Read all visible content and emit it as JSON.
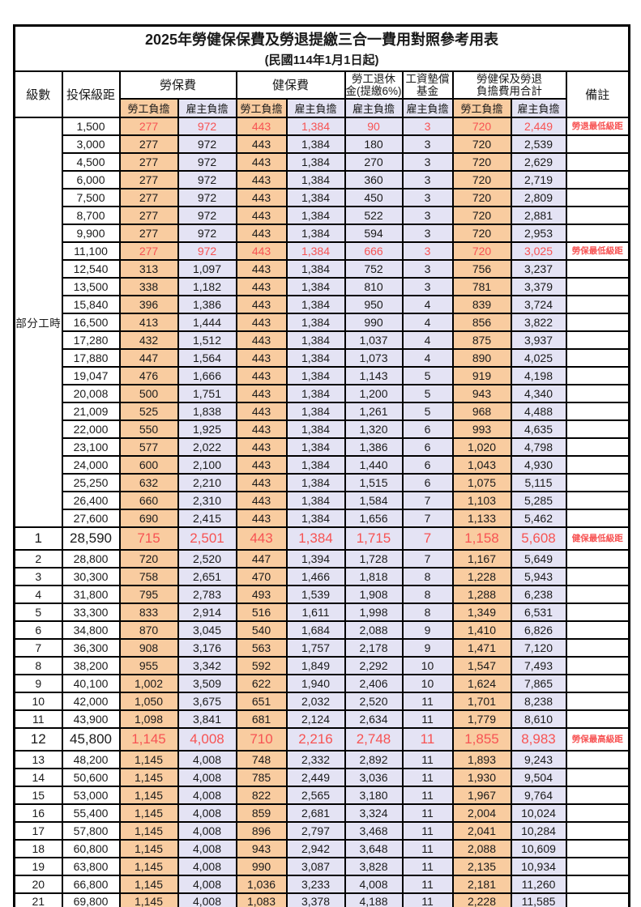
{
  "title": "2025年勞健保保費及勞退提繳三合一費用對照參考用表",
  "subtitle": "(民國114年1月1日起)",
  "colors": {
    "employee_col_bg": "#F9CCA0",
    "employer_col_bg": "#E4E3F4",
    "highlight_text": "#F75353",
    "border": "#000000"
  },
  "header": {
    "level": "級數",
    "bracket": "投保級距",
    "labor_ins": "勞保費",
    "health_ins": "健保費",
    "pension_line1": "勞工退休",
    "pension_line2": "金(提繳6%)",
    "wage_fund_line1": "工資墊償",
    "wage_fund_line2": "基金",
    "total_line1": "勞健保及勞退",
    "total_line2": "負擔費用合計",
    "remark": "備註",
    "employee": "勞工負擔",
    "employer": "雇主負擔"
  },
  "part_time_label": "部分工時",
  "rows": [
    {
      "level": "",
      "bracket": "1,500",
      "values": [
        "277",
        "972",
        "443",
        "1,384",
        "90",
        "3",
        "720",
        "2,449"
      ],
      "remark": "勞退最低級距",
      "red": true,
      "big": false
    },
    {
      "level": "",
      "bracket": "3,000",
      "values": [
        "277",
        "972",
        "443",
        "1,384",
        "180",
        "3",
        "720",
        "2,539"
      ],
      "remark": "",
      "red": false,
      "big": false
    },
    {
      "level": "",
      "bracket": "4,500",
      "values": [
        "277",
        "972",
        "443",
        "1,384",
        "270",
        "3",
        "720",
        "2,629"
      ],
      "remark": "",
      "red": false,
      "big": false
    },
    {
      "level": "",
      "bracket": "6,000",
      "values": [
        "277",
        "972",
        "443",
        "1,384",
        "360",
        "3",
        "720",
        "2,719"
      ],
      "remark": "",
      "red": false,
      "big": false
    },
    {
      "level": "",
      "bracket": "7,500",
      "values": [
        "277",
        "972",
        "443",
        "1,384",
        "450",
        "3",
        "720",
        "2,809"
      ],
      "remark": "",
      "red": false,
      "big": false
    },
    {
      "level": "",
      "bracket": "8,700",
      "values": [
        "277",
        "972",
        "443",
        "1,384",
        "522",
        "3",
        "720",
        "2,881"
      ],
      "remark": "",
      "red": false,
      "big": false
    },
    {
      "level": "",
      "bracket": "9,900",
      "values": [
        "277",
        "972",
        "443",
        "1,384",
        "594",
        "3",
        "720",
        "2,953"
      ],
      "remark": "",
      "red": false,
      "big": false
    },
    {
      "level": "",
      "bracket": "11,100",
      "values": [
        "277",
        "972",
        "443",
        "1,384",
        "666",
        "3",
        "720",
        "3,025"
      ],
      "remark": "勞保最低級距",
      "red": true,
      "big": false
    },
    {
      "level": "",
      "bracket": "12,540",
      "values": [
        "313",
        "1,097",
        "443",
        "1,384",
        "752",
        "3",
        "756",
        "3,237"
      ],
      "remark": "",
      "red": false,
      "big": false
    },
    {
      "level": "",
      "bracket": "13,500",
      "values": [
        "338",
        "1,182",
        "443",
        "1,384",
        "810",
        "3",
        "781",
        "3,379"
      ],
      "remark": "",
      "red": false,
      "big": false
    },
    {
      "level": "",
      "bracket": "15,840",
      "values": [
        "396",
        "1,386",
        "443",
        "1,384",
        "950",
        "4",
        "839",
        "3,724"
      ],
      "remark": "",
      "red": false,
      "big": false
    },
    {
      "level": "",
      "bracket": "16,500",
      "values": [
        "413",
        "1,444",
        "443",
        "1,384",
        "990",
        "4",
        "856",
        "3,822"
      ],
      "remark": "",
      "red": false,
      "big": false
    },
    {
      "level": "",
      "bracket": "17,280",
      "values": [
        "432",
        "1,512",
        "443",
        "1,384",
        "1,037",
        "4",
        "875",
        "3,937"
      ],
      "remark": "",
      "red": false,
      "big": false
    },
    {
      "level": "",
      "bracket": "17,880",
      "values": [
        "447",
        "1,564",
        "443",
        "1,384",
        "1,073",
        "4",
        "890",
        "4,025"
      ],
      "remark": "",
      "red": false,
      "big": false
    },
    {
      "level": "",
      "bracket": "19,047",
      "values": [
        "476",
        "1,666",
        "443",
        "1,384",
        "1,143",
        "5",
        "919",
        "4,198"
      ],
      "remark": "",
      "red": false,
      "big": false
    },
    {
      "level": "",
      "bracket": "20,008",
      "values": [
        "500",
        "1,751",
        "443",
        "1,384",
        "1,200",
        "5",
        "943",
        "4,340"
      ],
      "remark": "",
      "red": false,
      "big": false
    },
    {
      "level": "",
      "bracket": "21,009",
      "values": [
        "525",
        "1,838",
        "443",
        "1,384",
        "1,261",
        "5",
        "968",
        "4,488"
      ],
      "remark": "",
      "red": false,
      "big": false
    },
    {
      "level": "",
      "bracket": "22,000",
      "values": [
        "550",
        "1,925",
        "443",
        "1,384",
        "1,320",
        "6",
        "993",
        "4,635"
      ],
      "remark": "",
      "red": false,
      "big": false
    },
    {
      "level": "",
      "bracket": "23,100",
      "values": [
        "577",
        "2,022",
        "443",
        "1,384",
        "1,386",
        "6",
        "1,020",
        "4,798"
      ],
      "remark": "",
      "red": false,
      "big": false
    },
    {
      "level": "",
      "bracket": "24,000",
      "values": [
        "600",
        "2,100",
        "443",
        "1,384",
        "1,440",
        "6",
        "1,043",
        "4,930"
      ],
      "remark": "",
      "red": false,
      "big": false
    },
    {
      "level": "",
      "bracket": "25,250",
      "values": [
        "632",
        "2,210",
        "443",
        "1,384",
        "1,515",
        "6",
        "1,075",
        "5,115"
      ],
      "remark": "",
      "red": false,
      "big": false
    },
    {
      "level": "",
      "bracket": "26,400",
      "values": [
        "660",
        "2,310",
        "443",
        "1,384",
        "1,584",
        "7",
        "1,103",
        "5,285"
      ],
      "remark": "",
      "red": false,
      "big": false
    },
    {
      "level": "",
      "bracket": "27,600",
      "values": [
        "690",
        "2,415",
        "443",
        "1,384",
        "1,656",
        "7",
        "1,133",
        "5,462"
      ],
      "remark": "",
      "red": false,
      "big": false
    },
    {
      "level": "1",
      "bracket": "28,590",
      "values": [
        "715",
        "2,501",
        "443",
        "1,384",
        "1,715",
        "7",
        "1,158",
        "5,608"
      ],
      "remark": "健保最低級距",
      "red": true,
      "big": true
    },
    {
      "level": "2",
      "bracket": "28,800",
      "values": [
        "720",
        "2,520",
        "447",
        "1,394",
        "1,728",
        "7",
        "1,167",
        "5,649"
      ],
      "remark": "",
      "red": false,
      "big": false
    },
    {
      "level": "3",
      "bracket": "30,300",
      "values": [
        "758",
        "2,651",
        "470",
        "1,466",
        "1,818",
        "8",
        "1,228",
        "5,943"
      ],
      "remark": "",
      "red": false,
      "big": false
    },
    {
      "level": "4",
      "bracket": "31,800",
      "values": [
        "795",
        "2,783",
        "493",
        "1,539",
        "1,908",
        "8",
        "1,288",
        "6,238"
      ],
      "remark": "",
      "red": false,
      "big": false
    },
    {
      "level": "5",
      "bracket": "33,300",
      "values": [
        "833",
        "2,914",
        "516",
        "1,611",
        "1,998",
        "8",
        "1,349",
        "6,531"
      ],
      "remark": "",
      "red": false,
      "big": false
    },
    {
      "level": "6",
      "bracket": "34,800",
      "values": [
        "870",
        "3,045",
        "540",
        "1,684",
        "2,088",
        "9",
        "1,410",
        "6,826"
      ],
      "remark": "",
      "red": false,
      "big": false
    },
    {
      "level": "7",
      "bracket": "36,300",
      "values": [
        "908",
        "3,176",
        "563",
        "1,757",
        "2,178",
        "9",
        "1,471",
        "7,120"
      ],
      "remark": "",
      "red": false,
      "big": false
    },
    {
      "level": "8",
      "bracket": "38,200",
      "values": [
        "955",
        "3,342",
        "592",
        "1,849",
        "2,292",
        "10",
        "1,547",
        "7,493"
      ],
      "remark": "",
      "red": false,
      "big": false
    },
    {
      "level": "9",
      "bracket": "40,100",
      "values": [
        "1,002",
        "3,509",
        "622",
        "1,940",
        "2,406",
        "10",
        "1,624",
        "7,865"
      ],
      "remark": "",
      "red": false,
      "big": false
    },
    {
      "level": "10",
      "bracket": "42,000",
      "values": [
        "1,050",
        "3,675",
        "651",
        "2,032",
        "2,520",
        "11",
        "1,701",
        "8,238"
      ],
      "remark": "",
      "red": false,
      "big": false
    },
    {
      "level": "11",
      "bracket": "43,900",
      "values": [
        "1,098",
        "3,841",
        "681",
        "2,124",
        "2,634",
        "11",
        "1,779",
        "8,610"
      ],
      "remark": "",
      "red": false,
      "big": false
    },
    {
      "level": "12",
      "bracket": "45,800",
      "values": [
        "1,145",
        "4,008",
        "710",
        "2,216",
        "2,748",
        "11",
        "1,855",
        "8,983"
      ],
      "remark": "勞保最高級距",
      "red": true,
      "big": true
    },
    {
      "level": "13",
      "bracket": "48,200",
      "values": [
        "1,145",
        "4,008",
        "748",
        "2,332",
        "2,892",
        "11",
        "1,893",
        "9,243"
      ],
      "remark": "",
      "red": false,
      "big": false
    },
    {
      "level": "14",
      "bracket": "50,600",
      "values": [
        "1,145",
        "4,008",
        "785",
        "2,449",
        "3,036",
        "11",
        "1,930",
        "9,504"
      ],
      "remark": "",
      "red": false,
      "big": false
    },
    {
      "level": "15",
      "bracket": "53,000",
      "values": [
        "1,145",
        "4,008",
        "822",
        "2,565",
        "3,180",
        "11",
        "1,967",
        "9,764"
      ],
      "remark": "",
      "red": false,
      "big": false
    },
    {
      "level": "16",
      "bracket": "55,400",
      "values": [
        "1,145",
        "4,008",
        "859",
        "2,681",
        "3,324",
        "11",
        "2,004",
        "10,024"
      ],
      "remark": "",
      "red": false,
      "big": false
    },
    {
      "level": "17",
      "bracket": "57,800",
      "values": [
        "1,145",
        "4,008",
        "896",
        "2,797",
        "3,468",
        "11",
        "2,041",
        "10,284"
      ],
      "remark": "",
      "red": false,
      "big": false
    },
    {
      "level": "18",
      "bracket": "60,800",
      "values": [
        "1,145",
        "4,008",
        "943",
        "2,942",
        "3,648",
        "11",
        "2,088",
        "10,609"
      ],
      "remark": "",
      "red": false,
      "big": false
    },
    {
      "level": "19",
      "bracket": "63,800",
      "values": [
        "1,145",
        "4,008",
        "990",
        "3,087",
        "3,828",
        "11",
        "2,135",
        "10,934"
      ],
      "remark": "",
      "red": false,
      "big": false
    },
    {
      "level": "20",
      "bracket": "66,800",
      "values": [
        "1,145",
        "4,008",
        "1,036",
        "3,233",
        "4,008",
        "11",
        "2,181",
        "11,260"
      ],
      "remark": "",
      "red": false,
      "big": false
    },
    {
      "level": "21",
      "bracket": "69,800",
      "values": [
        "1,145",
        "4,008",
        "1,083",
        "3,378",
        "4,188",
        "11",
        "2,228",
        "11,585"
      ],
      "remark": "",
      "red": false,
      "big": false
    }
  ]
}
